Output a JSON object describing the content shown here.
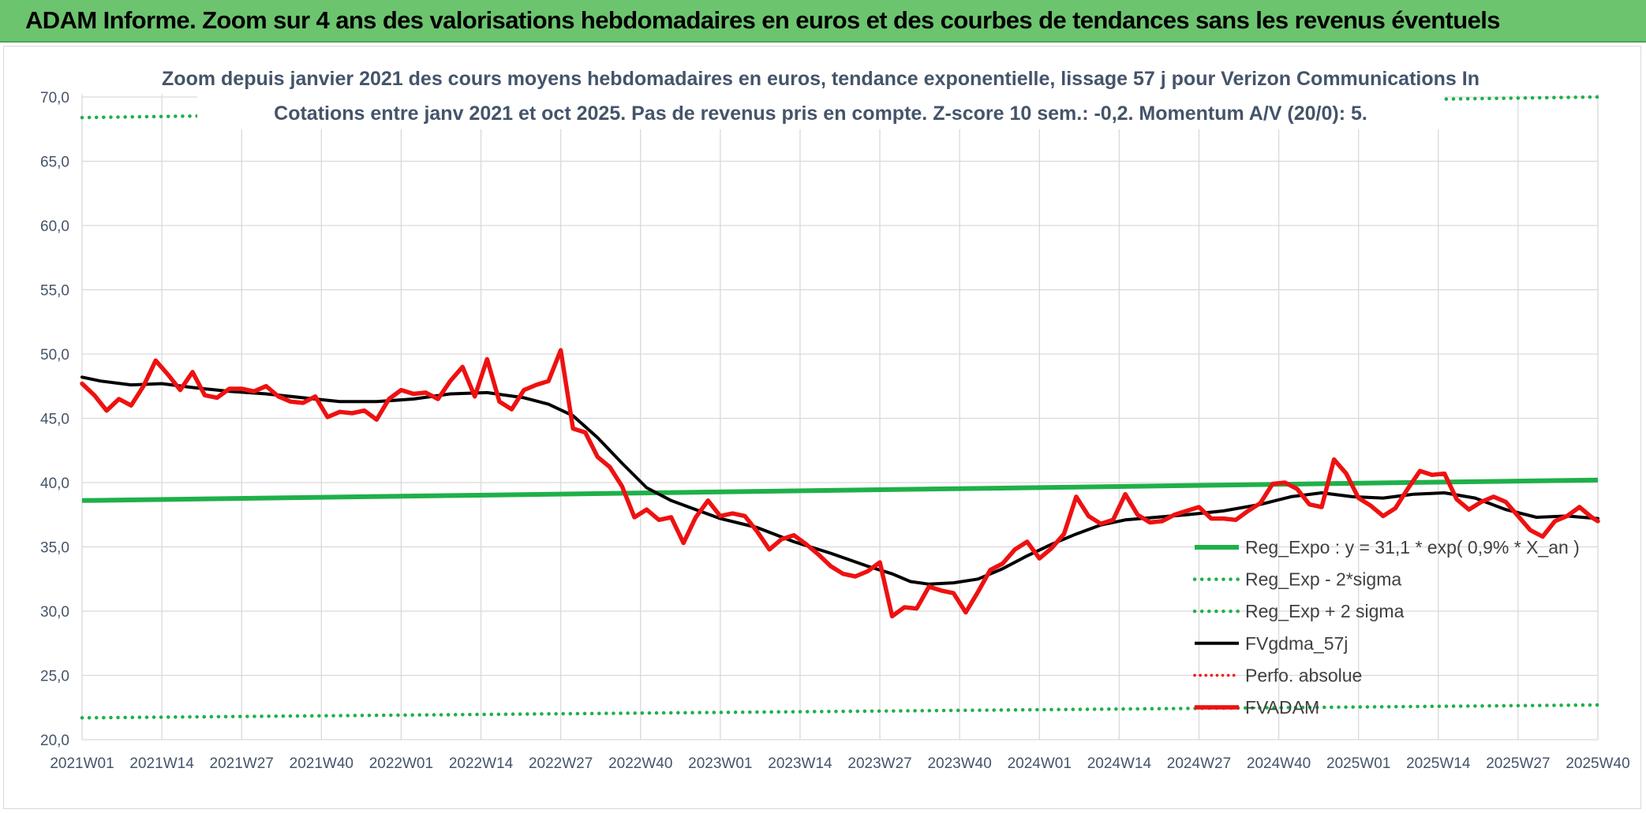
{
  "banner": {
    "title": "ADAM Informe. Zoom sur 4 ans des valorisations hebdomadaires en euros et des courbes de tendances sans les revenus éventuels"
  },
  "colors": {
    "banner": "#6cc46f",
    "reg_expo": "#1fb049",
    "sigma": "#1fb049",
    "fvgdma": "#000000",
    "perfo": "#ff0000",
    "fvadam": "#ee1111",
    "grid": "#d9d9d9",
    "axis_text": "#44546a"
  },
  "chart_data": {
    "type": "line",
    "title": "Zoom depuis janvier 2021 des cours moyens hebdomadaires en euros, tendance exponentielle, lissage 57 j pour Verizon Communications In",
    "subtitle": "Cotations entre janv 2021 et oct 2025. Pas de revenus pris en compte. Z-score 10 sem.: -0,2. Momentum A/V (20/0): 5.",
    "ylim": [
      20,
      70
    ],
    "y_ticks": [
      "20,0",
      "25,0",
      "30,0",
      "35,0",
      "40,0",
      "45,0",
      "50,0",
      "55,0",
      "60,0",
      "65,0",
      "70,0"
    ],
    "x_ticks": [
      "2021W01",
      "2021W14",
      "2021W27",
      "2021W40",
      "2022W01",
      "2022W14",
      "2022W27",
      "2022W40",
      "2023W01",
      "2023W14",
      "2023W27",
      "2023W40",
      "2024W01",
      "2024W14",
      "2024W27",
      "2024W40",
      "2025W01",
      "2025W14",
      "2025W27",
      "2025W40"
    ],
    "x_tick_index": [
      0,
      13,
      26,
      39,
      52,
      65,
      78,
      91,
      104,
      117,
      130,
      143,
      156,
      169,
      182,
      195,
      208,
      221,
      234,
      247
    ],
    "n_weeks": 248,
    "legend": [
      {
        "key": "reg_expo",
        "label": "Reg_Expo : y = 31,1 * exp( 0,9% *  X_an )"
      },
      {
        "key": "reg_minus",
        "label": "Reg_Exp - 2*sigma"
      },
      {
        "key": "reg_plus",
        "label": "Reg_Exp + 2 sigma"
      },
      {
        "key": "fvgdma",
        "label": "FVgdma_57j"
      },
      {
        "key": "perfo",
        "label": "Perfo. absolue"
      },
      {
        "key": "fvadam",
        "label": "FVADAM"
      }
    ],
    "series": [
      {
        "name": "Reg_Expo",
        "key": "reg_expo",
        "kind": "linear",
        "x": [
          0,
          247
        ],
        "y": [
          38.6,
          40.2
        ]
      },
      {
        "name": "Reg_Exp - 2*sigma",
        "key": "reg_minus",
        "kind": "linear",
        "x": [
          0,
          247
        ],
        "y": [
          21.7,
          22.7
        ]
      },
      {
        "name": "Reg_Exp + 2 sigma",
        "key": "reg_plus",
        "kind": "linear",
        "x": [
          0,
          247
        ],
        "y": [
          68.4,
          70.0
        ]
      },
      {
        "name": "FVgdma_57j",
        "key": "fvgdma",
        "kind": "points",
        "x": [
          0,
          3,
          8,
          13,
          18,
          24,
          30,
          36,
          42,
          48,
          54,
          60,
          66,
          72,
          76,
          80,
          84,
          88,
          92,
          96,
          100,
          104,
          110,
          116,
          122,
          128,
          132,
          135,
          138,
          142,
          146,
          150,
          154,
          158,
          162,
          166,
          170,
          175,
          180,
          186,
          192,
          197,
          202,
          207,
          212,
          217,
          222,
          227,
          232,
          237,
          242,
          247
        ],
        "y": [
          48.2,
          47.9,
          47.6,
          47.7,
          47.4,
          47.1,
          46.9,
          46.6,
          46.3,
          46.3,
          46.5,
          46.9,
          47.0,
          46.6,
          46.1,
          45.2,
          43.5,
          41.5,
          39.6,
          38.6,
          37.9,
          37.2,
          36.5,
          35.4,
          34.5,
          33.5,
          32.9,
          32.3,
          32.1,
          32.2,
          32.5,
          33.3,
          34.3,
          35.2,
          36.0,
          36.7,
          37.1,
          37.3,
          37.5,
          37.8,
          38.3,
          38.9,
          39.2,
          38.9,
          38.8,
          39.1,
          39.2,
          38.8,
          37.9,
          37.3,
          37.4,
          37.2
        ]
      },
      {
        "name": "FVADAM",
        "key": "fvadam",
        "kind": "points",
        "x": [
          0,
          2,
          4,
          6,
          8,
          10,
          12,
          14,
          16,
          18,
          20,
          22,
          24,
          26,
          28,
          30,
          32,
          34,
          36,
          38,
          40,
          42,
          44,
          46,
          48,
          50,
          52,
          54,
          56,
          58,
          60,
          62,
          64,
          66,
          68,
          70,
          72,
          74,
          76,
          78,
          80,
          82,
          84,
          86,
          88,
          90,
          92,
          94,
          96,
          98,
          100,
          102,
          104,
          106,
          108,
          110,
          112,
          114,
          116,
          118,
          120,
          122,
          124,
          126,
          128,
          130,
          132,
          134,
          136,
          138,
          140,
          142,
          144,
          146,
          148,
          150,
          152,
          154,
          156,
          158,
          160,
          162,
          164,
          166,
          168,
          170,
          172,
          174,
          176,
          178,
          180,
          182,
          184,
          186,
          188,
          190,
          192,
          194,
          196,
          198,
          200,
          202,
          204,
          206,
          208,
          210,
          212,
          214,
          216,
          218,
          220,
          222,
          224,
          226,
          228,
          230,
          232,
          234,
          236,
          238,
          240,
          242,
          244,
          246,
          247
        ],
        "y": [
          47.7,
          46.8,
          45.6,
          46.5,
          46.0,
          47.5,
          49.5,
          48.4,
          47.2,
          48.6,
          46.8,
          46.6,
          47.3,
          47.3,
          47.1,
          47.5,
          46.7,
          46.3,
          46.2,
          46.7,
          45.1,
          45.5,
          45.4,
          45.6,
          44.9,
          46.5,
          47.2,
          46.9,
          47.0,
          46.5,
          47.9,
          49.0,
          46.7,
          49.6,
          46.3,
          45.7,
          47.2,
          47.6,
          47.9,
          50.3,
          44.2,
          43.9,
          42.0,
          41.2,
          39.7,
          37.3,
          37.9,
          37.1,
          37.3,
          35.3,
          37.3,
          38.6,
          37.4,
          37.6,
          37.4,
          36.2,
          34.8,
          35.6,
          35.9,
          35.2,
          34.4,
          33.5,
          32.9,
          32.7,
          33.1,
          33.8,
          29.6,
          30.3,
          30.2,
          31.9,
          31.6,
          31.4,
          29.9,
          31.5,
          33.2,
          33.7,
          34.8,
          35.4,
          34.1,
          34.9,
          36.0,
          38.9,
          37.4,
          36.8,
          37.1,
          39.1,
          37.5,
          36.9,
          37.0,
          37.5,
          37.8,
          38.1,
          37.2,
          37.2,
          37.1,
          37.8,
          38.4,
          39.9,
          40.0,
          39.5,
          38.3,
          38.1,
          41.8,
          40.7,
          38.8,
          38.2,
          37.4,
          38.0,
          39.5,
          40.9,
          40.6,
          40.7,
          38.7,
          37.9,
          38.5,
          38.9,
          38.5,
          37.4,
          36.3,
          35.8,
          37.0,
          37.4,
          38.1,
          37.3,
          37.0
        ]
      }
    ]
  }
}
